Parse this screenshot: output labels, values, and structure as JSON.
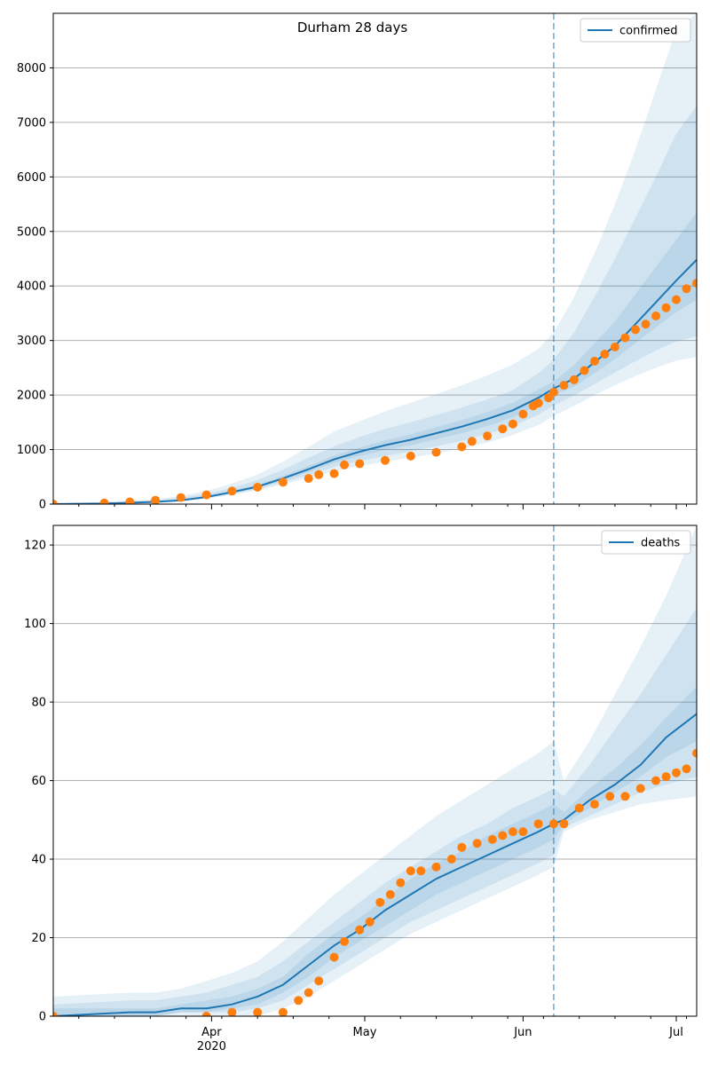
{
  "figure": {
    "title": "Durham 28 days",
    "date_ticks": [
      {
        "label": "Apr",
        "day": 31
      },
      {
        "label": "May",
        "day": 61
      },
      {
        "label": "Jun",
        "day": 92
      },
      {
        "label": "Jul",
        "day": 122
      }
    ],
    "year_label": "2020",
    "minor_tick_step_days": 7,
    "minor_tick_first_day": 5,
    "forecast_start_day": 98,
    "x_range": [
      0,
      126
    ],
    "colors": {
      "model": "#1f77b4",
      "observed": "#ff7f0e",
      "grid": "#b0b0b0"
    }
  },
  "chart_data": [
    {
      "type": "line",
      "legend": "confirmed",
      "legend_position": "top-right",
      "grid": "horizontal",
      "ylim": [
        0,
        9000
      ],
      "yticks": [
        0,
        1000,
        2000,
        3000,
        4000,
        5000,
        6000,
        7000,
        8000
      ],
      "series": [
        {
          "name": "confirmed",
          "kind": "model median",
          "x": [
            0,
            10,
            20,
            25,
            30,
            35,
            40,
            45,
            50,
            55,
            60,
            65,
            70,
            75,
            80,
            85,
            90,
            95,
            98,
            102,
            106,
            110,
            114,
            118,
            122,
            126
          ],
          "y": [
            0,
            10,
            40,
            70,
            130,
            220,
            320,
            470,
            640,
            820,
            960,
            1080,
            1180,
            1300,
            1420,
            1560,
            1720,
            1950,
            2120,
            2300,
            2600,
            2900,
            3300,
            3700,
            4100,
            4480
          ]
        },
        {
          "kind": "observed",
          "x": [
            0,
            10,
            15,
            20,
            25,
            30,
            35,
            40,
            45,
            50,
            52,
            55,
            57,
            60,
            65,
            70,
            75,
            80,
            82,
            85,
            88,
            90,
            92,
            94,
            95,
            97,
            98,
            100,
            102,
            104,
            106,
            108,
            110,
            112,
            114,
            116,
            118,
            120,
            122,
            124,
            126
          ],
          "y": [
            0,
            20,
            40,
            70,
            120,
            170,
            240,
            310,
            400,
            470,
            540,
            560,
            720,
            740,
            800,
            880,
            950,
            1050,
            1150,
            1250,
            1380,
            1470,
            1650,
            1800,
            1850,
            1950,
            2050,
            2180,
            2280,
            2450,
            2620,
            2750,
            2880,
            3050,
            3200,
            3300,
            3450,
            3600,
            3750,
            3950,
            4050
          ]
        }
      ],
      "bands": [
        {
          "lower": [
            0,
            5,
            25,
            50,
            100,
            170,
            250,
            360,
            480,
            600,
            700,
            780,
            850,
            930,
            1020,
            1130,
            1270,
            1450,
            1620,
            1800,
            2000,
            2180,
            2350,
            2500,
            2630,
            2700
          ],
          "upper": [
            20,
            40,
            90,
            150,
            240,
            380,
            540,
            780,
            1050,
            1330,
            1520,
            1700,
            1860,
            2020,
            2180,
            2360,
            2560,
            2850,
            3150,
            3800,
            4600,
            5500,
            6500,
            7600,
            8700,
            9000
          ]
        },
        {
          "lower": [
            0,
            6,
            30,
            58,
            110,
            185,
            275,
            400,
            530,
            680,
            790,
            880,
            970,
            1060,
            1160,
            1290,
            1430,
            1640,
            1810,
            1990,
            2200,
            2410,
            2620,
            2820,
            2980,
            3080
          ],
          "upper": [
            15,
            28,
            70,
            120,
            190,
            300,
            440,
            630,
            850,
            1060,
            1230,
            1380,
            1500,
            1630,
            1770,
            1920,
            2090,
            2400,
            2650,
            3150,
            3800,
            4500,
            5250,
            6000,
            6800,
            7300
          ]
        },
        {
          "lower": [
            0,
            8,
            35,
            63,
            120,
            200,
            295,
            435,
            590,
            760,
            880,
            990,
            1080,
            1190,
            1300,
            1430,
            1590,
            1810,
            2000,
            2150,
            2400,
            2660,
            2950,
            3240,
            3520,
            3750
          ],
          "upper": [
            5,
            14,
            48,
            80,
            145,
            245,
            355,
            515,
            700,
            890,
            1040,
            1170,
            1280,
            1410,
            1540,
            1690,
            1860,
            2100,
            2250,
            2550,
            2950,
            3350,
            3850,
            4350,
            4850,
            5350
          ]
        }
      ]
    },
    {
      "type": "line",
      "legend": "deaths",
      "legend_position": "top-right",
      "grid": "horizontal",
      "ylim": [
        0,
        125
      ],
      "yticks": [
        0,
        20,
        40,
        60,
        80,
        100,
        120
      ],
      "series": [
        {
          "name": "deaths",
          "kind": "model median",
          "x": [
            0,
            15,
            20,
            25,
            30,
            35,
            40,
            45,
            50,
            55,
            60,
            65,
            70,
            75,
            80,
            85,
            90,
            95,
            98,
            100,
            105,
            110,
            115,
            120,
            126
          ],
          "y": [
            0,
            1,
            1,
            2,
            2,
            3,
            5,
            8,
            13,
            18,
            22,
            27,
            31,
            35,
            38,
            41,
            44,
            47,
            49,
            50,
            55,
            59,
            64,
            71,
            77
          ]
        },
        {
          "kind": "observed",
          "x": [
            0,
            30,
            35,
            40,
            45,
            48,
            50,
            52,
            55,
            57,
            60,
            62,
            64,
            66,
            68,
            70,
            72,
            75,
            78,
            80,
            83,
            86,
            88,
            90,
            92,
            95,
            98,
            100,
            103,
            106,
            109,
            112,
            115,
            118,
            120,
            122,
            124,
            126
          ],
          "y": [
            0,
            0,
            1,
            1,
            1,
            4,
            6,
            9,
            15,
            19,
            22,
            24,
            29,
            31,
            34,
            37,
            37,
            38,
            40,
            43,
            44,
            45,
            46,
            47,
            47,
            49,
            49,
            49,
            53,
            54,
            56,
            56,
            58,
            60,
            61,
            62,
            63,
            67
          ]
        }
      ],
      "bands": [
        {
          "lower": [
            0,
            0,
            0,
            0,
            0,
            0,
            0,
            2,
            5,
            9,
            13,
            17,
            21,
            24,
            27,
            30,
            33,
            36,
            38,
            47,
            50,
            52,
            54,
            55,
            56
          ],
          "upper": [
            5,
            6,
            6,
            7,
            9,
            11,
            14,
            19,
            25,
            31,
            36,
            41,
            46,
            51,
            55,
            59,
            63,
            67,
            70,
            60,
            70,
            82,
            94,
            107,
            125
          ]
        },
        {
          "lower": [
            0,
            0,
            0,
            1,
            1,
            1,
            2,
            4,
            8,
            12,
            16,
            20,
            24,
            27,
            30,
            33,
            36,
            39,
            41,
            48,
            51,
            54,
            57,
            59,
            61
          ],
          "upper": [
            3,
            4,
            4,
            5,
            6,
            8,
            10,
            14,
            19,
            24,
            29,
            34,
            38,
            42,
            46,
            49,
            53,
            56,
            58,
            56,
            64,
            73,
            82,
            92,
            104
          ]
        },
        {
          "lower": [
            0,
            0,
            0,
            1,
            1,
            2,
            3,
            6,
            10,
            15,
            19,
            23,
            27,
            31,
            34,
            37,
            40,
            43,
            45,
            49,
            53,
            57,
            61,
            66,
            70
          ],
          "upper": [
            2,
            2,
            2,
            3,
            4,
            5,
            7,
            10,
            16,
            21,
            25,
            30,
            35,
            39,
            42,
            46,
            49,
            52,
            54,
            52,
            58,
            63,
            69,
            76,
            84
          ]
        }
      ]
    }
  ]
}
